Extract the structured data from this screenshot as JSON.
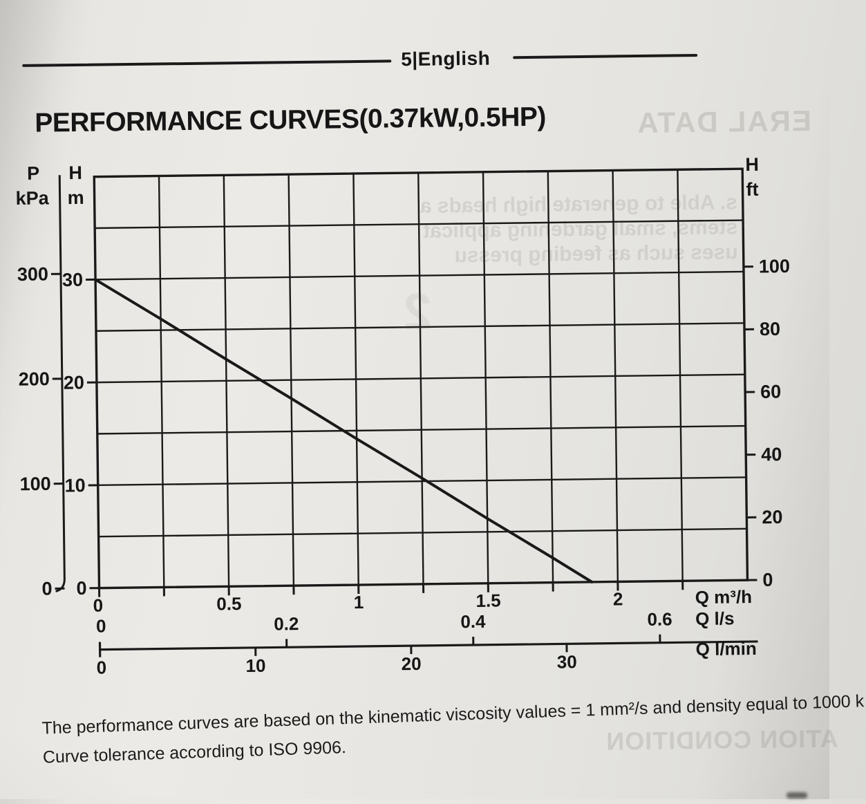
{
  "display": {
    "header_label": "5|English",
    "title": "PERFORMANCE CURVES(0.37kW,0.5HP)",
    "axis_units": {
      "p": "P",
      "kpa": "kPa",
      "h_left": "H",
      "m": "m",
      "h_right": "H",
      "ft": "ft",
      "q_m3h": "Q m³/h",
      "q_ls": "Q l/s",
      "q_lmin": "Q l/min"
    },
    "footer": {
      "line1": "The performance curves are based on the kinematic viscosity values = 1 mm²/s and density equal to 1000 k",
      "line2": "Curve tolerance according to ISO 9906."
    },
    "artifacts": {
      "top_right": "ERAL DATA",
      "bottom_right": "ATION CONDITION",
      "chart_bleed_lines": [
        "s. Able to generate high heads a",
        "stems, small gardening applicat",
        "uses such as feeding pressu"
      ],
      "bleed_digit": "2"
    }
  },
  "chart_data": {
    "type": "line",
    "title": "PERFORMANCE CURVES(0.37kW,0.5HP)",
    "grid": true,
    "x_axis_primary": {
      "label": "Q m³/h",
      "range": [
        0,
        2.5
      ],
      "grid_step": 0.25,
      "ticks": [
        0,
        0.5,
        1,
        1.5,
        2
      ]
    },
    "x_axis_ls": {
      "label": "Q l/s",
      "ticks": [
        0,
        0.2,
        0.4,
        0.6
      ]
    },
    "x_axis_lmin": {
      "label": "Q l/min",
      "ticks": [
        0,
        10,
        20,
        30
      ]
    },
    "y_axis_m": {
      "label": "H m",
      "range": [
        0,
        40
      ],
      "grid_step": 5,
      "ticks": [
        0,
        10,
        20,
        30
      ]
    },
    "y_axis_kpa": {
      "label": "P kPa",
      "ticks": [
        0,
        100,
        200,
        300
      ]
    },
    "y_axis_ft": {
      "label": "H ft",
      "ticks": [
        0,
        20,
        40,
        60,
        80,
        100
      ]
    },
    "series": [
      {
        "name": "head-capacity-curve",
        "x_m3h": [
          0,
          0.25,
          0.5,
          0.75,
          1.0,
          1.25,
          1.5,
          1.75,
          1.9
        ],
        "h_m": [
          30,
          26.1,
          22.1,
          18.2,
          14.2,
          10.3,
          6.3,
          2.4,
          0
        ]
      }
    ]
  }
}
